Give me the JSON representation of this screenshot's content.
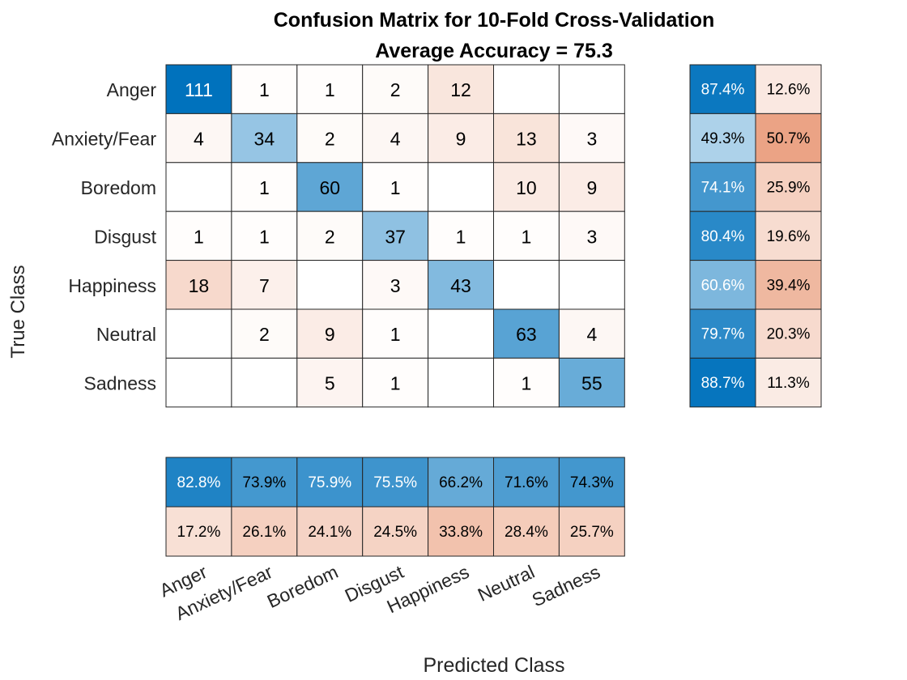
{
  "chart_data": {
    "type": "heatmap",
    "title_lines": [
      "Confusion Matrix for 10-Fold Cross-Validation",
      "Average Accuracy = 75.3"
    ],
    "xlabel": "Predicted Class",
    "ylabel": "True Class",
    "classes": [
      "Anger",
      "Anxiety/Fear",
      "Boredom",
      "Disgust",
      "Happiness",
      "Neutral",
      "Sadness"
    ],
    "matrix": [
      [
        111,
        1,
        1,
        2,
        12,
        0,
        0
      ],
      [
        4,
        34,
        2,
        4,
        9,
        13,
        3
      ],
      [
        0,
        1,
        60,
        1,
        0,
        10,
        9
      ],
      [
        1,
        1,
        2,
        37,
        1,
        1,
        3
      ],
      [
        18,
        7,
        0,
        3,
        43,
        0,
        0
      ],
      [
        0,
        2,
        9,
        1,
        0,
        63,
        4
      ],
      [
        0,
        0,
        5,
        1,
        0,
        1,
        55
      ]
    ],
    "row_summary": {
      "correct": [
        "87.4%",
        "49.3%",
        "74.1%",
        "80.4%",
        "60.6%",
        "79.7%",
        "88.7%"
      ],
      "incorrect": [
        "12.6%",
        "50.7%",
        "25.9%",
        "19.6%",
        "39.4%",
        "20.3%",
        "11.3%"
      ]
    },
    "column_summary": {
      "correct": [
        "82.8%",
        "73.9%",
        "75.9%",
        "75.5%",
        "66.2%",
        "71.6%",
        "74.3%"
      ],
      "incorrect": [
        "17.2%",
        "26.1%",
        "24.1%",
        "24.5%",
        "33.8%",
        "28.4%",
        "25.7%"
      ]
    },
    "colors": {
      "diagonal_dark": "#0072bd",
      "diagonal_light": "#ffffff",
      "offdiag_dark": "#d95319",
      "offdiag_light": "#ffffff",
      "grid": "#262626",
      "text_dark": "#000000",
      "text_light": "#ffffff"
    }
  }
}
